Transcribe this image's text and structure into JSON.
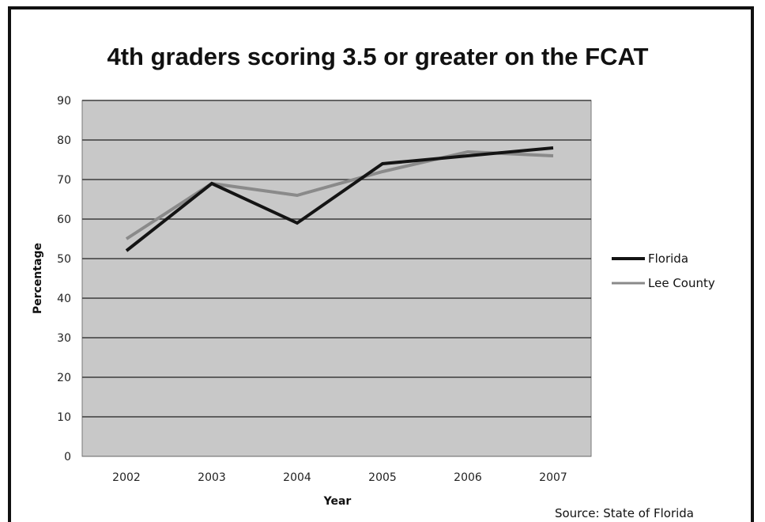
{
  "chart_data": {
    "type": "line",
    "title": "4th graders scoring 3.5 or greater on the FCAT",
    "xlabel": "Year",
    "ylabel": "Percentage",
    "categories": [
      "2002",
      "2003",
      "2004",
      "2005",
      "2006",
      "2007"
    ],
    "ylim": [
      0,
      90
    ],
    "yticks": [
      "0",
      "10",
      "20",
      "30",
      "40",
      "50",
      "60",
      "70",
      "80",
      "90"
    ],
    "grid": true,
    "legend_position": "right",
    "series": [
      {
        "name": "Florida",
        "values": [
          52,
          69,
          59,
          74,
          76,
          78
        ],
        "color": "#141414"
      },
      {
        "name": "Lee County",
        "values": [
          55,
          69,
          66,
          72,
          77,
          76
        ],
        "color": "#8a8a8a"
      }
    ],
    "source": "Source: State of Florida",
    "plot_background": "#c8c8c8",
    "grid_color": "#3c3c3c"
  }
}
